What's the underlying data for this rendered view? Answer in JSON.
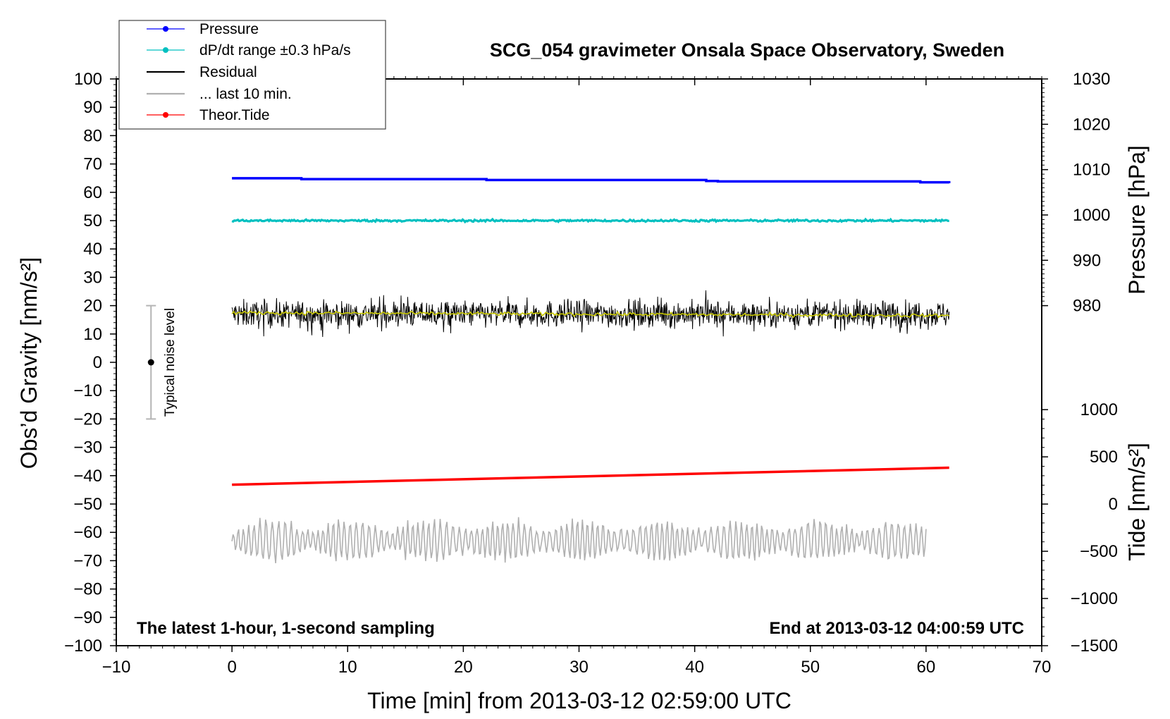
{
  "chart_data": {
    "type": "line",
    "title": "SCG_054 gravimeter Onsala Space Observatory, Sweden",
    "xlabel": "Time [min] from 2013-03-12 02:59:00 UTC",
    "ylabel_left": "Obs’d Gravity [nm/s²]",
    "ylabel_right_top": "Pressure [hPa]",
    "ylabel_right_bottom": "Tide [nm/s²]",
    "xlim": [
      -10,
      70
    ],
    "ylim_left": [
      -100,
      100
    ],
    "x_ticks": [
      "−10",
      "0",
      "10",
      "20",
      "30",
      "40",
      "50",
      "60",
      "70"
    ],
    "x_tick_values": [
      -10,
      0,
      10,
      20,
      30,
      40,
      50,
      60,
      70
    ],
    "y_left_ticks": [
      "100",
      "90",
      "80",
      "70",
      "60",
      "50",
      "40",
      "30",
      "20",
      "10",
      "0",
      "−10",
      "−20",
      "−30",
      "−40",
      "−50",
      "−60",
      "−70",
      "−80",
      "−90",
      "−100"
    ],
    "y_left_tick_values": [
      100,
      90,
      80,
      70,
      60,
      50,
      40,
      30,
      20,
      10,
      0,
      -10,
      -20,
      -30,
      -40,
      -50,
      -60,
      -70,
      -80,
      -90,
      -100
    ],
    "pressure_axis": {
      "ticks": [
        "1030",
        "1020",
        "1010",
        "1000",
        "990",
        "980"
      ],
      "tick_values": [
        1030,
        1020,
        1010,
        1000,
        990,
        980
      ],
      "range_hpa": [
        980,
        1030
      ],
      "maps_to_gravity": [
        20,
        100
      ]
    },
    "tide_axis": {
      "ticks": [
        "1000",
        "500",
        "0",
        "−500",
        "−1000",
        "−1500"
      ],
      "tick_values": [
        1000,
        500,
        0,
        -500,
        -1000,
        -1500
      ],
      "range": [
        -1500,
        1000
      ],
      "maps_to_gravity": [
        -100,
        -16.7
      ]
    },
    "legend": [
      {
        "label": "Pressure",
        "color": "#0000ff",
        "marker": true
      },
      {
        "label": "dP/dt range ±0.3 hPa/s",
        "color": "#00c0c0",
        "marker": true
      },
      {
        "label": "Residual",
        "color": "#000000",
        "marker": false
      },
      {
        "label": "... last 10 min.",
        "color": "#b0b0b0",
        "marker": false
      },
      {
        "label": "Theor.Tide",
        "color": "#ff0000",
        "marker": true
      }
    ],
    "series": [
      {
        "name": "Pressure",
        "color": "#0000ff",
        "unit": "hPa",
        "x": [
          0,
          6,
          22,
          41,
          42,
          59.5,
          62
        ],
        "values": [
          1008.1,
          1007.9,
          1007.7,
          1007.5,
          1007.4,
          1007.2,
          1007.0
        ]
      },
      {
        "name": "dP/dt range ±0.3 hPa/s",
        "color": "#00c0c0",
        "unit": "nm/s²",
        "x": [
          0,
          62
        ],
        "values": [
          50,
          50
        ]
      },
      {
        "name": "Residual",
        "color": "#000000",
        "unit": "nm/s²",
        "x": [
          0,
          62
        ],
        "mean": 17,
        "range": [
          3,
          29
        ]
      },
      {
        "name": "Residual smoothed",
        "color": "#c8c800",
        "unit": "nm/s²",
        "x": [
          0,
          62
        ],
        "values": [
          17.5,
          16.5
        ]
      },
      {
        "name": "... last 10 min.",
        "color": "#b0b0b0",
        "unit": "nm/s²",
        "x": [
          0,
          60
        ],
        "mean": -63,
        "range": [
          -72,
          -52
        ]
      },
      {
        "name": "Theor.Tide",
        "color": "#ff0000",
        "unit": "nm/s²",
        "x": [
          0,
          62
        ],
        "values": [
          -43.2,
          -37.2
        ]
      }
    ],
    "noise_bar": {
      "label": "Typical noise level",
      "x": -7,
      "center": 0,
      "range": [
        -20,
        20
      ]
    },
    "annotations": {
      "left": "The latest 1-hour, 1-second sampling",
      "right": "End at 2013-03-12 04:00:59 UTC"
    }
  },
  "colors": {
    "pressure": "#0000ff",
    "dpdt": "#00c0c0",
    "residual": "#000000",
    "smoothed": "#c8c800",
    "last10": "#b0b0b0",
    "tide": "#ff0000",
    "noise": "#b4b4b4"
  }
}
